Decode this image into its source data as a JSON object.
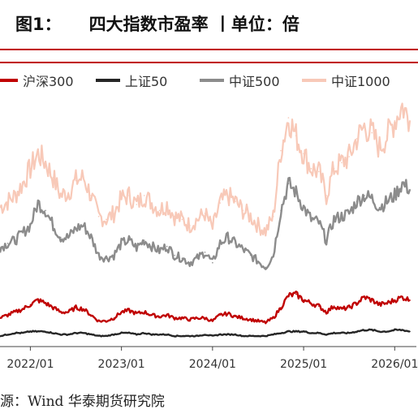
{
  "header": {
    "prefix": "图1：",
    "title": "四大指数市盈率 丨单位：倍"
  },
  "source": "源：Wind 华泰期货研究院",
  "colors": {
    "accent_rule": "#c00000",
    "hs300": "#c00000",
    "sz50": "#262626",
    "zz500": "#8c8c8c",
    "zz1000": "#f8c9b8"
  },
  "chart_data": {
    "type": "line",
    "title": "四大指数市盈率 丨单位：倍",
    "xlabel": "",
    "ylabel": "",
    "ylim": [
      0,
      170
    ],
    "grid": false,
    "legend_position": "top",
    "x_ticks": [
      "2022/01",
      "2023/01",
      "2024/01",
      "2025/01",
      "2026/01"
    ],
    "x": [
      "2021/09",
      "2021/10",
      "2021/11",
      "2021/12",
      "2022/01",
      "2022/02",
      "2022/03",
      "2022/04",
      "2022/05",
      "2022/06",
      "2022/07",
      "2022/08",
      "2022/09",
      "2022/10",
      "2022/11",
      "2022/12",
      "2023/01",
      "2023/02",
      "2023/03",
      "2023/04",
      "2023/05",
      "2023/06",
      "2023/07",
      "2023/08",
      "2023/09",
      "2023/10",
      "2023/11",
      "2023/12",
      "2024/01",
      "2024/02",
      "2024/03",
      "2024/04",
      "2024/05",
      "2024/06",
      "2024/07",
      "2024/08",
      "2024/09",
      "2024/10",
      "2024/11",
      "2024/12",
      "2025/01",
      "2025/02",
      "2025/03",
      "2025/04",
      "2025/05",
      "2025/06",
      "2025/07",
      "2025/08",
      "2025/09",
      "2025/10",
      "2025/11",
      "2025/12",
      "2026/01",
      "2026/02",
      "2026/03"
    ],
    "series": [
      {
        "name": "沪深300",
        "color": "#c00000",
        "values": [
          18,
          20,
          22,
          24,
          27,
          30,
          28,
          25,
          22,
          22,
          25,
          24,
          20,
          16,
          16,
          18,
          22,
          23,
          21,
          22,
          20,
          19,
          20,
          18,
          18,
          17,
          18,
          18,
          16,
          20,
          21,
          19,
          18,
          17,
          16,
          15,
          18,
          25,
          33,
          34,
          30,
          28,
          26,
          22,
          26,
          24,
          25,
          28,
          32,
          30,
          27,
          28,
          30,
          32,
          30
        ]
      },
      {
        "name": "上证50",
        "color": "#262626",
        "values": [
          6,
          7,
          8,
          8,
          9,
          9,
          9,
          8,
          7,
          7,
          8,
          8,
          7,
          6,
          6,
          7,
          8,
          8,
          7,
          8,
          7,
          7,
          7,
          6,
          6,
          6,
          6,
          7,
          6,
          7,
          7,
          7,
          6,
          6,
          6,
          6,
          7,
          8,
          9,
          9,
          9,
          8,
          8,
          7,
          8,
          8,
          8,
          9,
          10,
          10,
          9,
          9,
          10,
          10,
          9
        ]
      },
      {
        "name": "中证500",
        "color": "#8c8c8c",
        "values": [
          65,
          68,
          70,
          75,
          80,
          95,
          90,
          80,
          72,
          72,
          78,
          80,
          72,
          60,
          58,
          60,
          68,
          70,
          65,
          70,
          66,
          63,
          66,
          60,
          58,
          55,
          58,
          62,
          55,
          68,
          72,
          68,
          64,
          60,
          56,
          52,
          60,
          90,
          108,
          102,
          92,
          84,
          82,
          70,
          84,
          86,
          88,
          96,
          100,
          98,
          92,
          96,
          100,
          108,
          104
        ]
      },
      {
        "name": "中证1000",
        "color": "#f8c9b8",
        "values": [
          92,
          96,
          100,
          108,
          118,
          128,
          122,
          112,
          100,
          102,
          110,
          112,
          100,
          86,
          84,
          88,
          98,
          100,
          94,
          100,
          95,
          90,
          94,
          86,
          84,
          80,
          84,
          88,
          78,
          95,
          100,
          96,
          90,
          86,
          80,
          76,
          86,
          130,
          152,
          140,
          128,
          118,
          116,
          100,
          118,
          122,
          126,
          138,
          146,
          142,
          132,
          140,
          150,
          160,
          150
        ]
      }
    ]
  }
}
